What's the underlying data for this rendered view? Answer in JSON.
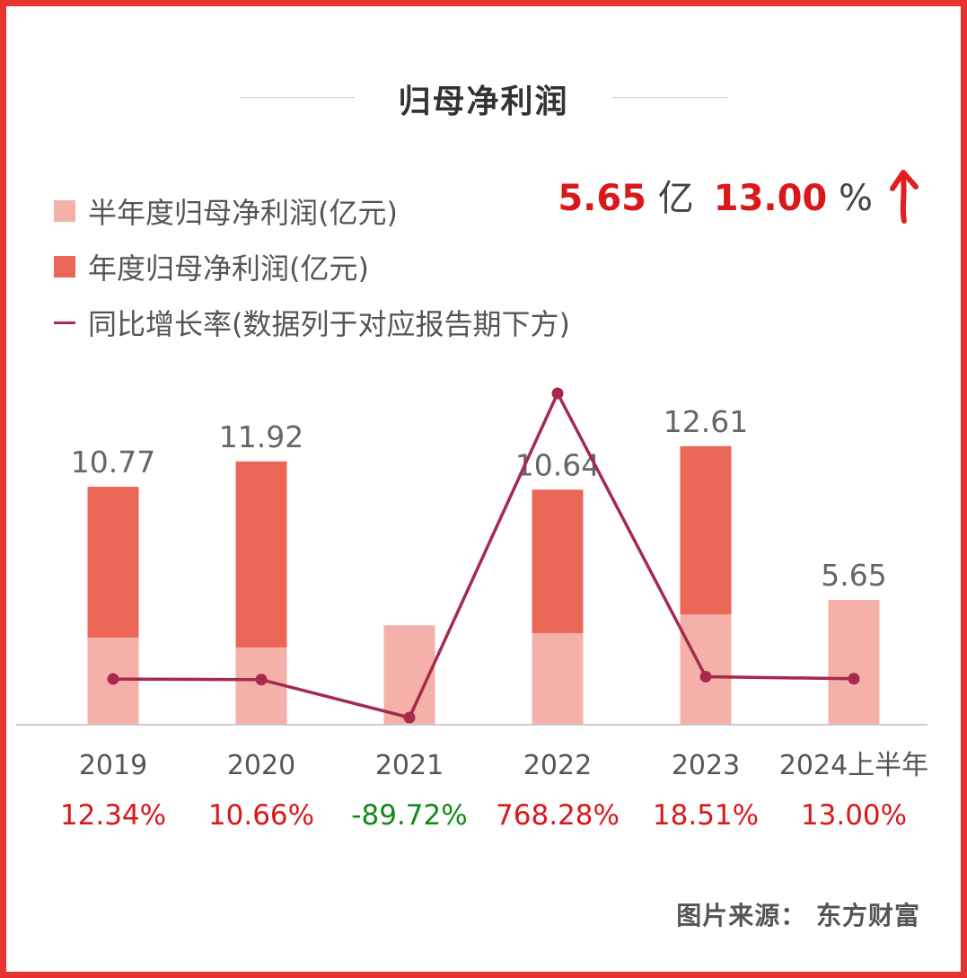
{
  "title": "归母净利润",
  "headline": {
    "value": "5.65",
    "value_unit": "亿",
    "growth": "13.00",
    "growth_unit": "%",
    "arrow": "up-arrow-icon"
  },
  "legend": [
    {
      "label": "半年度归母净利润(亿元)",
      "color": "#f4b0a9"
    },
    {
      "label": "年度归母净利润(亿元)",
      "color": "#ea6657"
    },
    {
      "label": "同比增长率(数据列于对应报告期下方)",
      "color": "#a52a4b"
    }
  ],
  "chart_data": {
    "type": "bar",
    "categories": [
      "2019",
      "2020",
      "2021",
      "2022",
      "2023",
      "2024上半年"
    ],
    "series": [
      {
        "name": "半年度归母净利润(亿元)",
        "values": [
          3.95,
          3.5,
          4.5,
          4.15,
          5.0,
          5.65
        ]
      },
      {
        "name": "年度归母净利润(亿元)",
        "values": [
          10.77,
          11.92,
          null,
          10.64,
          12.61,
          null
        ]
      },
      {
        "name": "同比增长率(数据列于对应报告期下方)",
        "values": [
          12.34,
          10.66,
          -89.72,
          768.28,
          18.51,
          13.0
        ]
      }
    ],
    "data_labels": [
      "10.77",
      "11.92",
      "",
      "10.64",
      "12.61",
      "5.65"
    ],
    "growth_labels": [
      "12.34%",
      "10.66%",
      "-89.72%",
      "768.28%",
      "18.51%",
      "13.00%"
    ],
    "colors": {
      "positive": "#d9181a",
      "negative": "#118a18",
      "line": "#a52a4b",
      "half": "#f4b0a9",
      "annual": "#ea6657"
    }
  },
  "source": "图片来源： 东方财富"
}
